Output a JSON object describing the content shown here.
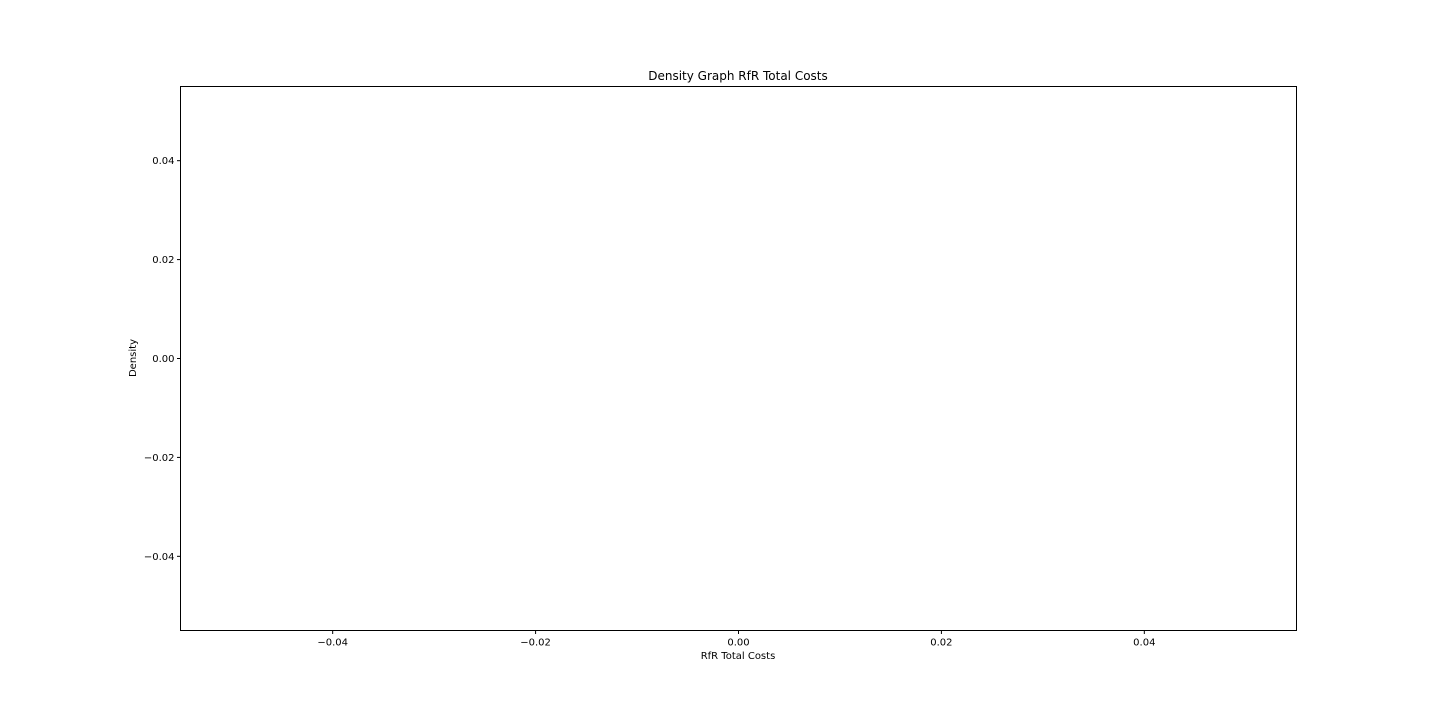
{
  "chart_data": {
    "type": "area",
    "title": "Density Graph RfR Total Costs",
    "xlabel": "RfR Total Costs",
    "ylabel": "Density",
    "xlim": [
      -0.055,
      0.055
    ],
    "ylim": [
      -0.055,
      0.055
    ],
    "xticks": [
      -0.04,
      -0.02,
      0.0,
      0.02,
      0.04
    ],
    "xtick_labels": [
      "−0.04",
      "−0.02",
      "0.00",
      "0.02",
      "0.04"
    ],
    "yticks": [
      0.04,
      0.02,
      0.0,
      -0.02,
      -0.04
    ],
    "ytick_labels": [
      "0.04",
      "0.02",
      "0.00",
      "−0.02",
      "−0.04"
    ],
    "grid": false,
    "series": []
  },
  "colors": {
    "axes": "#000000",
    "background": "#ffffff"
  }
}
